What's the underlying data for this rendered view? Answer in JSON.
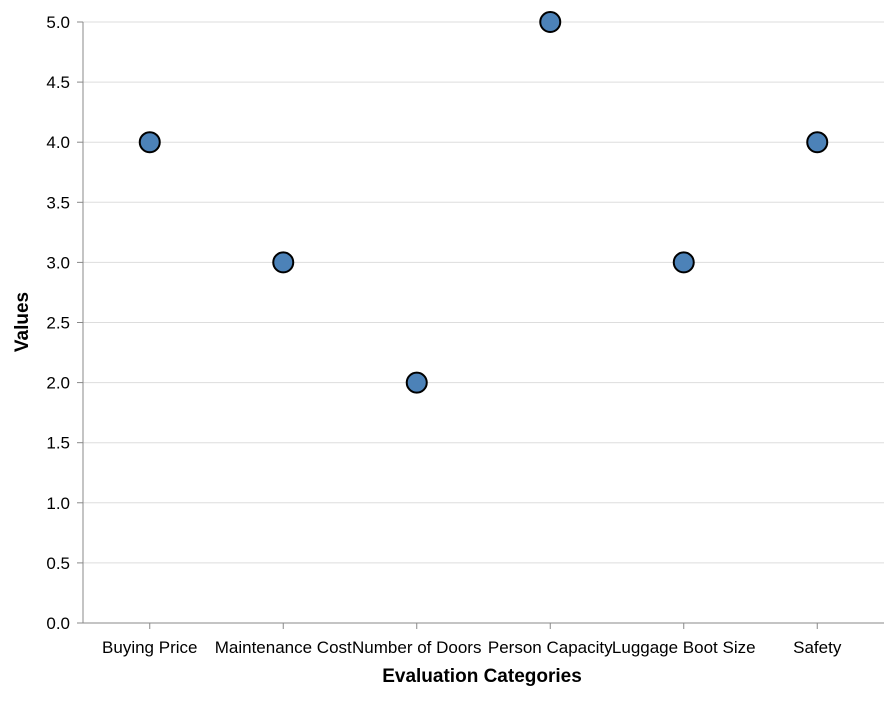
{
  "chart_data": {
    "type": "scatter",
    "title": "",
    "xlabel": "Evaluation Categories",
    "ylabel": "Values",
    "categories": [
      "Buying Price",
      "Maintenance Cost",
      "Number of Doors",
      "Person Capacity",
      "Luggage Boot Size",
      "Safety"
    ],
    "values": [
      4,
      3,
      2,
      5,
      3,
      4
    ],
    "ylim": [
      0,
      5
    ],
    "yticks": [
      "0.0",
      "0.5",
      "1.0",
      "1.5",
      "2.0",
      "2.5",
      "3.0",
      "3.5",
      "4.0",
      "4.5",
      "5.0"
    ],
    "grid": "horizontal",
    "legend": "none",
    "colors": {
      "point_fill": "#4c82b8",
      "point_stroke": "#000000",
      "grid": "#dddddd",
      "axis": "#888888",
      "text": "#000000"
    }
  }
}
